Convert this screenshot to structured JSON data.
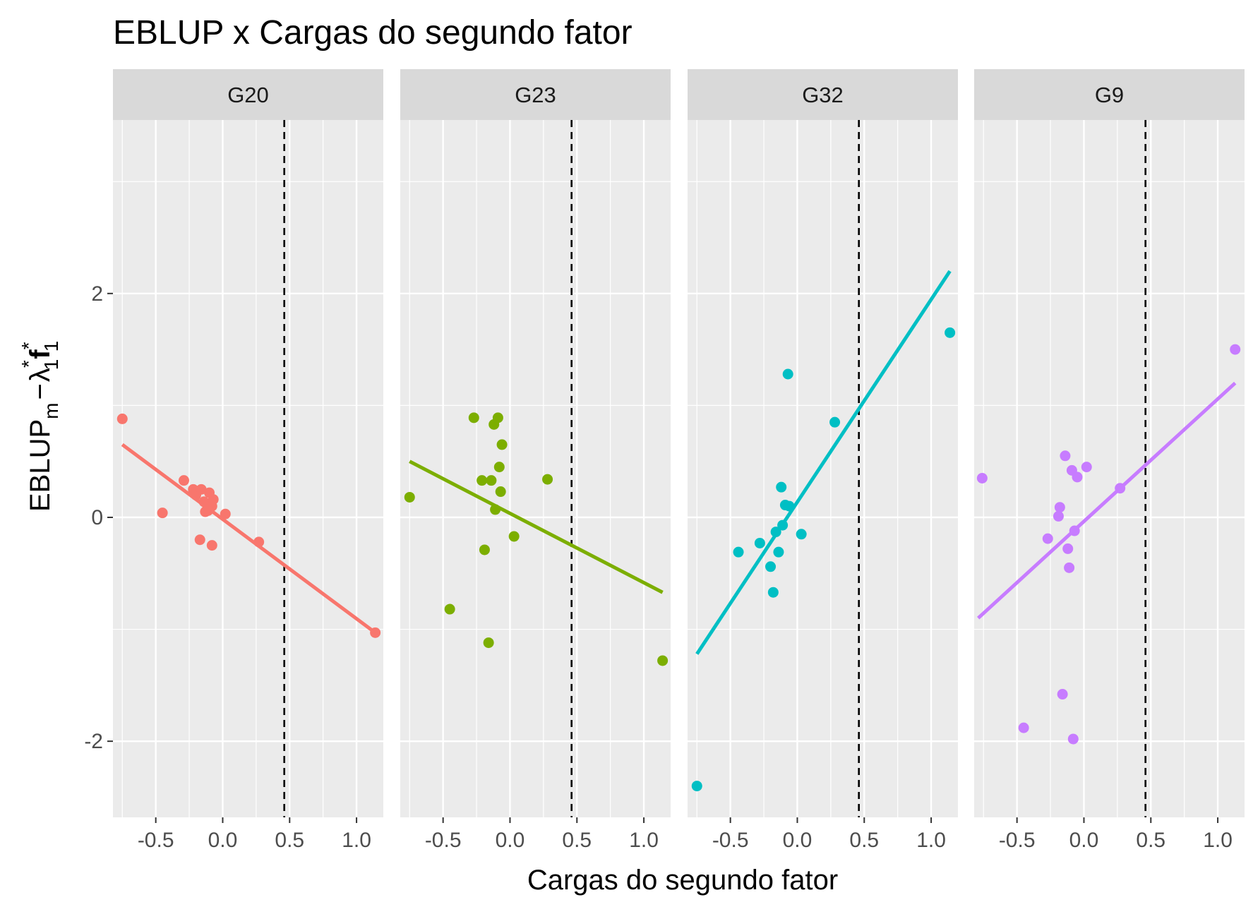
{
  "title": "EBLUP x Cargas do segundo fator",
  "xlabel": "Cargas do segundo fator",
  "ylabel": {
    "main": "EBLUP",
    "sub_m": "m",
    "minus": "−",
    "lambda": "λ",
    "star": "*",
    "one": "1",
    "f": "f"
  },
  "colors": {
    "panel_bg": "#EBEBEB",
    "strip_bg": "#D9D9D9",
    "grid": "#FFFFFF",
    "tick": "#333333",
    "vline": "#000000"
  },
  "chart_data": {
    "type": "scatter",
    "facets": [
      "G20",
      "G23",
      "G32",
      "G9"
    ],
    "xlim": [
      -0.82,
      1.2
    ],
    "ylim": [
      -2.68,
      3.55
    ],
    "x_ticks": [
      -0.5,
      0.0,
      0.5,
      1.0
    ],
    "x_tick_labels": [
      "-0.5",
      "0.0",
      "0.5",
      "1.0"
    ],
    "y_ticks": [
      -2,
      0,
      2
    ],
    "y_tick_labels": [
      "-2",
      "0",
      "2"
    ],
    "grid": true,
    "vline_x": 0.46,
    "series": [
      {
        "name": "G20",
        "color": "#F8766D",
        "points": [
          [
            -0.75,
            0.88
          ],
          [
            -0.45,
            0.04
          ],
          [
            -0.29,
            0.33
          ],
          [
            -0.22,
            0.25
          ],
          [
            -0.2,
            0.2
          ],
          [
            -0.16,
            0.25
          ],
          [
            -0.14,
            0.14
          ],
          [
            -0.12,
            0.12
          ],
          [
            -0.1,
            0.22
          ],
          [
            -0.08,
            0.1
          ],
          [
            -0.07,
            0.16
          ],
          [
            -0.13,
            0.05
          ],
          [
            -0.11,
            0.06
          ],
          [
            -0.17,
            -0.2
          ],
          [
            -0.08,
            -0.25
          ],
          [
            0.02,
            0.03
          ],
          [
            0.27,
            -0.22
          ],
          [
            1.14,
            -1.03
          ]
        ],
        "fit": [
          [
            -0.75,
            0.65
          ],
          [
            1.14,
            -1.03
          ]
        ]
      },
      {
        "name": "G23",
        "color": "#7CAE00",
        "points": [
          [
            -0.75,
            0.18
          ],
          [
            -0.45,
            -0.82
          ],
          [
            -0.27,
            0.89
          ],
          [
            -0.21,
            0.33
          ],
          [
            -0.19,
            -0.29
          ],
          [
            -0.16,
            -1.12
          ],
          [
            -0.14,
            0.33
          ],
          [
            -0.12,
            0.83
          ],
          [
            -0.11,
            0.07
          ],
          [
            -0.09,
            0.89
          ],
          [
            -0.08,
            0.45
          ],
          [
            -0.07,
            0.23
          ],
          [
            -0.06,
            0.65
          ],
          [
            0.03,
            -0.17
          ],
          [
            0.28,
            0.34
          ],
          [
            1.14,
            -1.28
          ]
        ],
        "fit": [
          [
            -0.75,
            0.5
          ],
          [
            1.14,
            -0.67
          ]
        ]
      },
      {
        "name": "G32",
        "color": "#00BFC4",
        "points": [
          [
            -0.75,
            -2.4
          ],
          [
            -0.44,
            -0.31
          ],
          [
            -0.28,
            -0.23
          ],
          [
            -0.2,
            -0.44
          ],
          [
            -0.18,
            -0.67
          ],
          [
            -0.16,
            -0.13
          ],
          [
            -0.14,
            -0.31
          ],
          [
            -0.12,
            0.27
          ],
          [
            -0.11,
            -0.07
          ],
          [
            -0.09,
            0.11
          ],
          [
            -0.07,
            1.28
          ],
          [
            -0.06,
            0.1
          ],
          [
            0.03,
            -0.15
          ],
          [
            0.28,
            0.85
          ],
          [
            1.14,
            1.65
          ]
        ],
        "fit": [
          [
            -0.75,
            -1.22
          ],
          [
            1.14,
            2.2
          ]
        ]
      },
      {
        "name": "G9",
        "color": "#C77CFF",
        "points": [
          [
            -0.76,
            0.35
          ],
          [
            -0.45,
            -1.88
          ],
          [
            -0.27,
            -0.19
          ],
          [
            -0.19,
            0.01
          ],
          [
            -0.18,
            0.09
          ],
          [
            -0.16,
            -1.58
          ],
          [
            -0.14,
            0.55
          ],
          [
            -0.12,
            -0.28
          ],
          [
            -0.11,
            -0.45
          ],
          [
            -0.09,
            0.42
          ],
          [
            -0.08,
            -1.98
          ],
          [
            -0.07,
            -0.12
          ],
          [
            -0.05,
            0.36
          ],
          [
            0.02,
            0.45
          ],
          [
            0.27,
            0.26
          ],
          [
            1.13,
            1.5
          ]
        ],
        "fit": [
          [
            -0.79,
            -0.9
          ],
          [
            1.13,
            1.2
          ]
        ]
      }
    ]
  }
}
